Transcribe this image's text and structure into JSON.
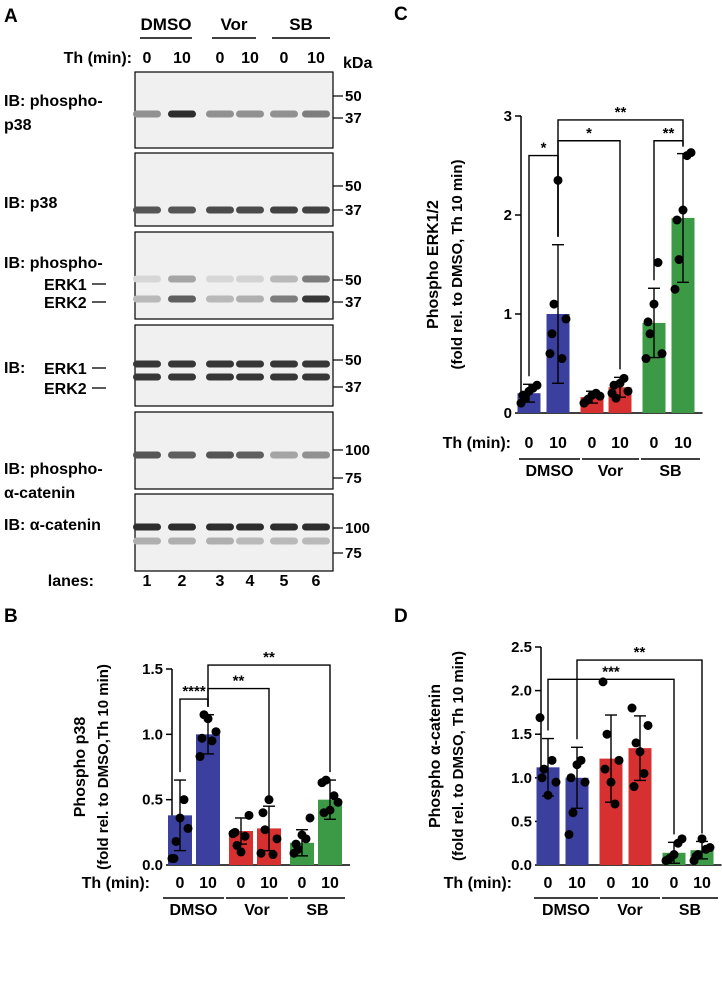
{
  "panelA": {
    "label": "A",
    "groups": [
      "DMSO",
      "Vor",
      "SB"
    ],
    "th_label": "Th (min):",
    "th_values": [
      "0",
      "10",
      "0",
      "10",
      "0",
      "10"
    ],
    "kda_label": "kDa",
    "lanes_label": "lanes:",
    "lanes": [
      "1",
      "2",
      "3",
      "4",
      "5",
      "6"
    ],
    "blots": [
      {
        "label_lines": [
          "IB: phospho-",
          "p38"
        ],
        "markers": [
          "50",
          "37"
        ],
        "band_labels": []
      },
      {
        "label_lines": [
          "IB: p38"
        ],
        "markers": [
          "50",
          "37"
        ],
        "band_labels": []
      },
      {
        "label_lines": [
          "IB: phospho-"
        ],
        "markers": [
          "50",
          "37"
        ],
        "band_labels": [
          "ERK1",
          "ERK2"
        ]
      },
      {
        "label_lines": [
          "IB:"
        ],
        "markers": [
          "50",
          "37"
        ],
        "band_labels": [
          "ERK1",
          "ERK2"
        ]
      },
      {
        "label_lines": [
          "IB: phospho-",
          "α-catenin"
        ],
        "markers": [
          "100",
          "75"
        ],
        "band_labels": []
      },
      {
        "label_lines": [
          "IB: α-catenin"
        ],
        "markers": [
          "100",
          "75"
        ],
        "band_labels": []
      }
    ]
  },
  "chart_data": [
    {
      "panel": "B",
      "type": "bar",
      "ylabel_lines": [
        "Phospho p38",
        "(fold rel. to DMSO,Th 10 min)"
      ],
      "ylim": [
        0,
        1.5
      ],
      "yticks": [
        "0.0",
        "0.5",
        "1.0",
        "1.5"
      ],
      "th_label": "Th (min):",
      "categories": [
        "0",
        "10",
        "0",
        "10",
        "0",
        "10"
      ],
      "groups": [
        "DMSO",
        "Vor",
        "SB"
      ],
      "values": [
        0.38,
        1.0,
        0.26,
        0.28,
        0.17,
        0.5
      ],
      "errors": [
        0.27,
        0.15,
        0.1,
        0.17,
        0.1,
        0.15
      ],
      "points": [
        [
          0.05,
          0.18,
          0.36,
          0.5,
          0.28,
          0.05
        ],
        [
          0.83,
          1.15,
          1.12,
          0.95,
          1.02,
          0.97
        ],
        [
          0.24,
          0.15,
          0.1,
          0.22,
          0.38,
          0.25
        ],
        [
          0.09,
          0.27,
          0.5,
          0.08,
          0.2,
          0.4
        ],
        [
          0.09,
          0.12,
          0.23,
          0.2,
          0.36,
          0.16
        ],
        [
          0.63,
          0.65,
          0.42,
          0.53,
          0.48,
          0.4
        ]
      ],
      "sig": [
        {
          "text": "****",
          "from": 0,
          "to": 1,
          "y": 1.27
        },
        {
          "text": "**",
          "from": 1,
          "to": 3,
          "y": 1.35
        },
        {
          "text": "**",
          "from": 1,
          "to": 5,
          "y": 1.53
        }
      ]
    },
    {
      "panel": "C",
      "type": "bar",
      "ylabel_lines": [
        "Phospho ERK1/2",
        "(fold rel. to DMSO, Th 10 min)"
      ],
      "ylim": [
        0,
        3
      ],
      "yticks": [
        "0",
        "1",
        "2",
        "3"
      ],
      "th_label": "Th (min):",
      "categories": [
        "0",
        "10",
        "0",
        "10",
        "0",
        "10"
      ],
      "groups": [
        "DMSO",
        "Vor",
        "SB"
      ],
      "values": [
        0.2,
        1.0,
        0.16,
        0.26,
        0.91,
        1.97
      ],
      "errors": [
        0.09,
        0.7,
        0.06,
        0.1,
        0.35,
        0.65
      ],
      "points": [
        [
          0.1,
          0.15,
          0.22,
          0.25,
          0.28,
          0.18
        ],
        [
          0.6,
          1.1,
          2.35,
          0.55,
          0.95,
          0.8
        ],
        [
          0.1,
          0.14,
          0.18,
          0.2,
          0.17,
          0.12
        ],
        [
          0.2,
          0.15,
          0.3,
          0.35,
          0.22,
          0.28
        ],
        [
          0.55,
          0.8,
          1.1,
          1.52,
          0.6,
          0.92
        ],
        [
          1.25,
          1.55,
          2.05,
          2.6,
          2.63,
          1.95
        ]
      ],
      "sig": [
        {
          "text": "*",
          "from": 0,
          "to": 1,
          "y": 2.6
        },
        {
          "text": "*",
          "from": 1,
          "to": 3,
          "y": 2.75
        },
        {
          "text": "**",
          "from": 4,
          "to": 5,
          "y": 2.75
        },
        {
          "text": "**",
          "from": 1,
          "to": 5,
          "y": 2.96
        }
      ]
    },
    {
      "panel": "D",
      "type": "bar",
      "ylabel_lines": [
        "Phospho α-catenin",
        "(fold rel. to DMSO, Th 10 min)"
      ],
      "ylim": [
        0,
        2.5
      ],
      "yticks": [
        "0.0",
        "0.5",
        "1.0",
        "1.5",
        "2.0",
        "2.5"
      ],
      "th_label": "Th (min):",
      "categories": [
        "0",
        "10",
        "0",
        "10",
        "0",
        "10"
      ],
      "groups": [
        "DMSO",
        "Vor",
        "SB"
      ],
      "values": [
        1.12,
        1.0,
        1.22,
        1.34,
        0.14,
        0.17
      ],
      "errors": [
        0.33,
        0.35,
        0.5,
        0.37,
        0.12,
        0.1
      ],
      "points": [
        [
          1.69,
          1.1,
          0.8,
          1.2,
          0.95,
          1.0
        ],
        [
          0.35,
          0.6,
          1.15,
          1.2,
          0.95,
          1.0
        ],
        [
          2.1,
          1.5,
          0.95,
          0.7,
          1.2,
          1.1
        ],
        [
          1.8,
          1.4,
          1.3,
          1.05,
          1.6,
          0.9
        ],
        [
          0.05,
          0.08,
          0.12,
          0.25,
          0.3,
          0.06
        ],
        [
          0.05,
          0.12,
          0.3,
          0.18,
          0.2,
          0.1
        ]
      ],
      "sig": [
        {
          "text": "***",
          "from": 0,
          "to": 4,
          "y": 2.13
        },
        {
          "text": "**",
          "from": 1,
          "to": 5,
          "y": 2.35
        }
      ]
    }
  ],
  "colors": {
    "DMSO": "#3b3f9e",
    "Vor": "#d63030",
    "SB": "#3c9a46"
  }
}
